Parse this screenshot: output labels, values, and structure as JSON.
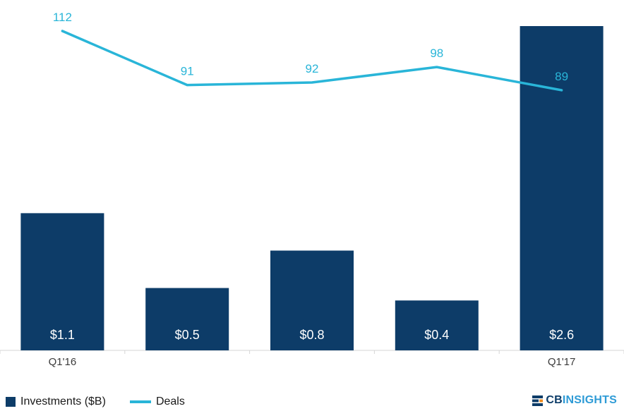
{
  "chart_data": {
    "type": "combo-bar-line",
    "categories": [
      "Q1'16",
      "",
      "",
      "",
      "Q1'17"
    ],
    "bar_series": {
      "name": "Investments ($B)",
      "values": [
        1.1,
        0.5,
        0.8,
        0.4,
        2.6
      ],
      "labels": [
        "$1.1",
        "$0.5",
        "$0.8",
        "$0.4",
        "$2.6"
      ],
      "color": "#0d3c68",
      "axis_max": 2.6
    },
    "line_series": {
      "name": "Deals",
      "values": [
        112,
        91,
        92,
        98,
        89
      ],
      "labels": [
        "112",
        "91",
        "92",
        "98",
        "89"
      ],
      "color": "#29b5d8"
    },
    "grid": false,
    "legend_position": "bottom-left"
  },
  "legend": {
    "investments_label": "Investments ($B)",
    "deals_label": "Deals"
  },
  "branding": {
    "cb": "CB",
    "insights": "INSIGHTS"
  },
  "colors": {
    "bar": "#0d3c68",
    "line": "#29b5d8",
    "axis_line": "#d6d6d6",
    "tick_text": "#3b3b3b",
    "bar_label": "#ffffff",
    "logo_navy": "#0d3c68",
    "logo_blue": "#2e9bd6",
    "logo_orange": "#f08b1d"
  }
}
